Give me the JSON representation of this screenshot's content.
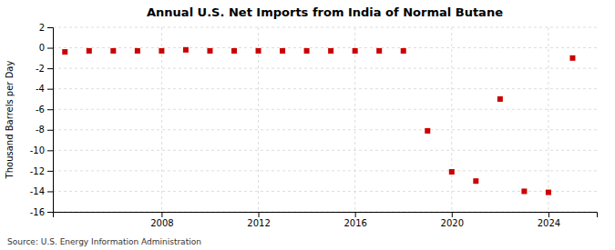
{
  "chart_data": {
    "type": "scatter",
    "title": "Annual U.S. Net Imports from India of Normal Butane",
    "ylabel": "Thousand Barrels per Day",
    "source": "Source: U.S. Energy Information Administration",
    "x": [
      2004,
      2005,
      2006,
      2007,
      2008,
      2009,
      2010,
      2011,
      2012,
      2013,
      2014,
      2015,
      2016,
      2017,
      2018,
      2019,
      2020,
      2021,
      2022,
      2023,
      2024,
      2025
    ],
    "values": [
      -0.4,
      -0.3,
      -0.3,
      -0.3,
      -0.3,
      -0.2,
      -0.3,
      -0.3,
      -0.3,
      -0.3,
      -0.3,
      -0.3,
      -0.3,
      -0.3,
      -0.3,
      -8.1,
      -12.1,
      -13.0,
      -5.0,
      -14.0,
      -14.1,
      -1.0
    ],
    "color": "#cc0000",
    "marker": "square",
    "xlim": [
      2003.5,
      2026
    ],
    "xticks": [
      2008,
      2012,
      2016,
      2020,
      2024
    ],
    "ylim": [
      -16,
      2
    ],
    "yticks": [
      2,
      0,
      -2,
      -4,
      -6,
      -8,
      -10,
      -12,
      -14,
      -16
    ],
    "grid": true
  }
}
